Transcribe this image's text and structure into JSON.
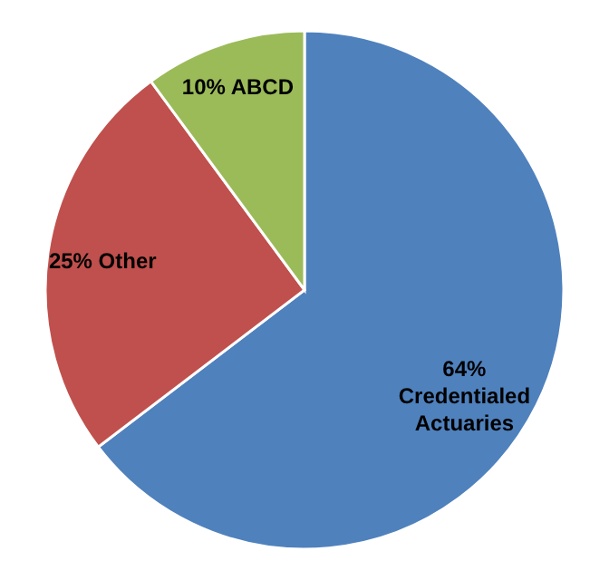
{
  "chart_data": {
    "type": "pie",
    "categories": [
      "Credentialed Actuaries",
      "Other",
      "ABCD"
    ],
    "values": [
      64,
      25,
      10
    ],
    "value_labels": [
      "64%",
      "25%",
      "10%"
    ],
    "colors": [
      "#4f81bd",
      "#c0504d",
      "#9bbb59"
    ]
  }
}
